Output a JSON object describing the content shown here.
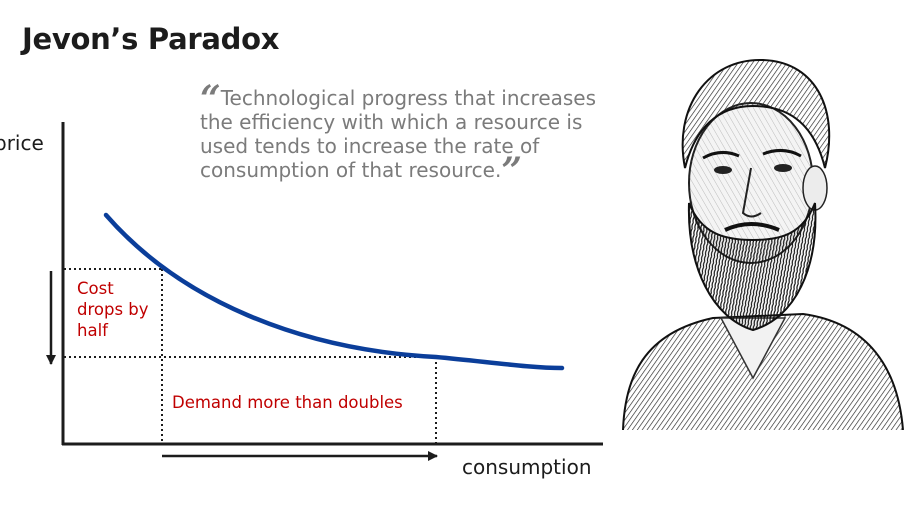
{
  "title": "Jevon’s Paradox",
  "quote": {
    "open_mark": "“",
    "text": "Technological progress that increases the efficiency with which a resource is used tends to increase the rate of consumption of that resource.",
    "close_mark": "”"
  },
  "diagram": {
    "y_label": "price",
    "x_label": "consumption",
    "cost_annotation": "Cost drops by half",
    "demand_annotation": "Demand more than doubles",
    "curve_color": "#0b3e9a",
    "annotation_color": "#c00000"
  },
  "portrait": {
    "description_icon": "bearded-man-engraving-portrait"
  }
}
